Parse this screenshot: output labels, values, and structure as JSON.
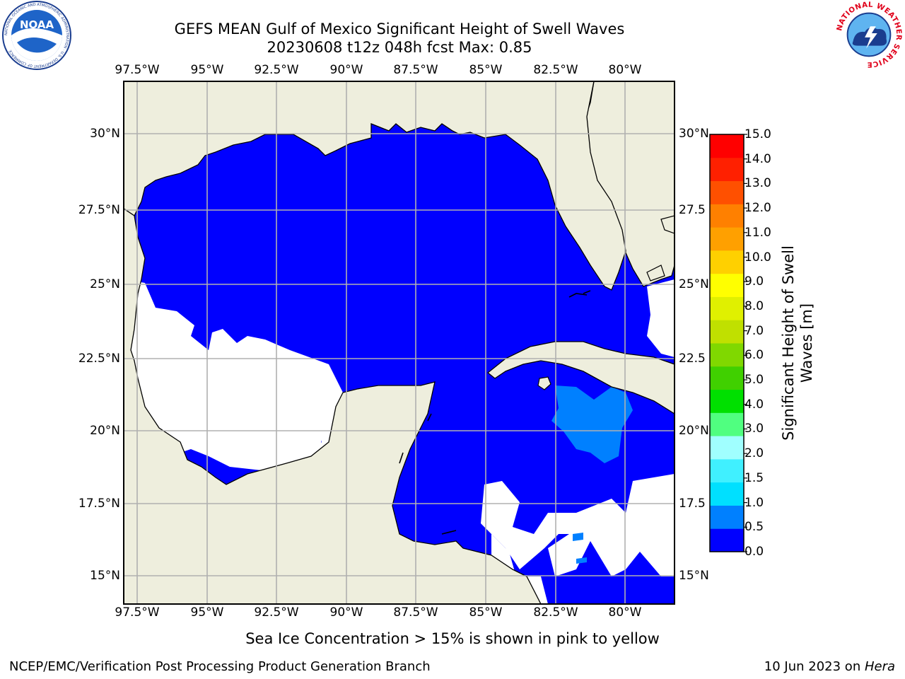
{
  "title": {
    "line1": "GEFS MEAN Gulf of Mexico Significant Height of Swell Waves",
    "line2": "20230608 t12z 048h fcst   Max: 0.85"
  },
  "logos": {
    "left": {
      "name": "NOAA",
      "ring_text": "NATIONAL OCEANIC AND ATMOSPHERIC ADMINISTRATION · U.S. DEPARTMENT OF COMMERCE"
    },
    "right": {
      "name": "NATIONAL WEATHER SERVICE"
    }
  },
  "map": {
    "lon_labels_top": [
      "97.5°W",
      "95°W",
      "92.5°W",
      "90°W",
      "87.5°W",
      "85°W",
      "82.5°W",
      "80°W"
    ],
    "lon_labels_bottom": [
      "97.5°W",
      "95°W",
      "92.5°W",
      "90°W",
      "87.5°W",
      "85°W",
      "82.5°W",
      "80°W"
    ],
    "lat_labels_left": [
      "30°N",
      "27.5°N",
      "25°N",
      "22.5°N",
      "20°N",
      "17.5°N",
      "15°N"
    ],
    "lat_labels_right": [
      "30°N",
      "27.5",
      "25°N",
      "22.5",
      "20°N",
      "17.5",
      "15°N"
    ],
    "colors": {
      "land": "#eeeedd",
      "ocean_0_0.5": "#0000ff",
      "ocean_0.5_1.0": "#0080ff",
      "no_data": "#ffffff",
      "grid": "#b0b0b0"
    }
  },
  "colorbar": {
    "label": "Significant Height of Swell Waves [m]",
    "ticks": [
      "0.0",
      "0.5",
      "1.0",
      "1.5",
      "2.0",
      "3.0",
      "4.0",
      "5.0",
      "6.0",
      "7.0",
      "8.0",
      "9.0",
      "10.0",
      "11.0",
      "12.0",
      "13.0",
      "14.0",
      "15.0"
    ],
    "colors": [
      "#0000ff",
      "#0080ff",
      "#00e0ff",
      "#40f0ff",
      "#a0ffff",
      "#50ff80",
      "#00e000",
      "#40d000",
      "#80d800",
      "#c0e000",
      "#e0f000",
      "#ffff00",
      "#ffd000",
      "#ffa000",
      "#ff8000",
      "#ff5000",
      "#ff2000",
      "#ff0000"
    ]
  },
  "note": "Sea Ice Concentration > 15% is shown in pink to yellow",
  "footer": {
    "left": "NCEP/EMC/Verification Post Processing Product Generation Branch",
    "date": "10 Jun 2023 on ",
    "host": "Hera"
  }
}
